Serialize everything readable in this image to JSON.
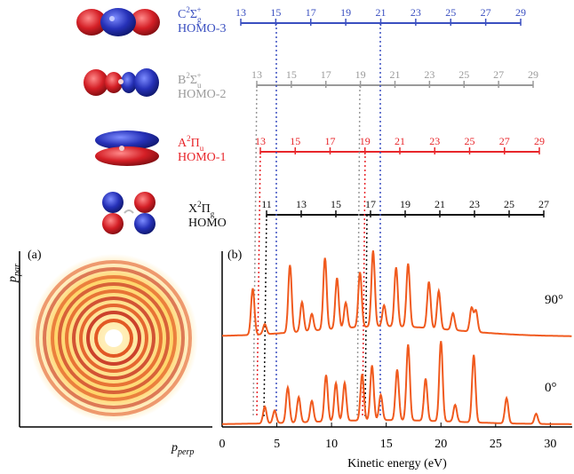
{
  "chart_data": [
    {
      "type": "diagram",
      "orbitals": [
        {
          "state": "C",
          "sup": "2",
          "term": "Σ",
          "sub": "g",
          "sup2": "+",
          "name": "HOMO-3",
          "color": "#3a4fc0",
          "harmonics": [
            "13",
            "15",
            "17",
            "19",
            "21",
            "23",
            "25",
            "27",
            "29"
          ]
        },
        {
          "state": "B",
          "sup": "2",
          "term": "Σ",
          "sub": "u",
          "sup2": "+",
          "name": "HOMO-2",
          "color": "#9a9a9a",
          "harmonics": [
            "13",
            "15",
            "17",
            "19",
            "21",
            "23",
            "25",
            "27",
            "29"
          ]
        },
        {
          "state": "A",
          "sup": "2",
          "term": "Π",
          "sub": "u",
          "sup2": "",
          "name": "HOMO-1",
          "color": "#e8262b",
          "harmonics": [
            "13",
            "15",
            "17",
            "19",
            "21",
            "23",
            "25",
            "27",
            "29"
          ]
        },
        {
          "state": "X",
          "sup": "2",
          "term": "Π",
          "sub": "g",
          "sup2": "",
          "name": "HOMO",
          "color": "#111111",
          "harmonics": [
            "11",
            "13",
            "15",
            "17",
            "19",
            "21",
            "23",
            "25",
            "27"
          ]
        }
      ]
    },
    {
      "type": "image",
      "panel": "(a)",
      "ylabel": "p",
      "ylabel_sub": "par",
      "xlabel": "p",
      "xlabel_sub": "perp"
    },
    {
      "type": "line",
      "panel": "(b)",
      "xlabel": "Kinetic energy (eV)",
      "xlim": [
        0,
        32
      ],
      "xticks": [
        "0",
        "5",
        "10",
        "15",
        "20",
        "25",
        "30"
      ],
      "series": [
        {
          "name": "90°",
          "color": "#f05a1e",
          "peaks": [
            [
              2.8,
              0.55
            ],
            [
              3.9,
              0.12
            ],
            [
              6.2,
              0.8
            ],
            [
              7.3,
              0.35
            ],
            [
              8.2,
              0.2
            ],
            [
              9.4,
              0.85
            ],
            [
              10.5,
              0.6
            ],
            [
              11.3,
              0.3
            ],
            [
              12.6,
              0.65
            ],
            [
              13.8,
              0.9
            ],
            [
              14.8,
              0.25
            ],
            [
              15.9,
              0.7
            ],
            [
              17.0,
              0.75
            ],
            [
              18.9,
              0.55
            ],
            [
              19.8,
              0.45
            ],
            [
              21.1,
              0.2
            ],
            [
              22.8,
              0.28
            ],
            [
              23.2,
              0.25
            ]
          ]
        },
        {
          "name": "0°",
          "color": "#f05a1e",
          "peaks": [
            [
              3.9,
              0.2
            ],
            [
              4.8,
              0.15
            ],
            [
              6.0,
              0.42
            ],
            [
              7.0,
              0.3
            ],
            [
              8.2,
              0.25
            ],
            [
              9.5,
              0.55
            ],
            [
              10.4,
              0.45
            ],
            [
              11.2,
              0.45
            ],
            [
              12.8,
              0.55
            ],
            [
              13.7,
              0.65
            ],
            [
              14.5,
              0.3
            ],
            [
              16.0,
              0.6
            ],
            [
              17.0,
              0.9
            ],
            [
              18.6,
              0.5
            ],
            [
              20.0,
              0.95
            ],
            [
              21.3,
              0.2
            ],
            [
              23.0,
              0.8
            ],
            [
              26.0,
              0.3
            ],
            [
              28.7,
              0.12
            ]
          ]
        }
      ]
    }
  ]
}
